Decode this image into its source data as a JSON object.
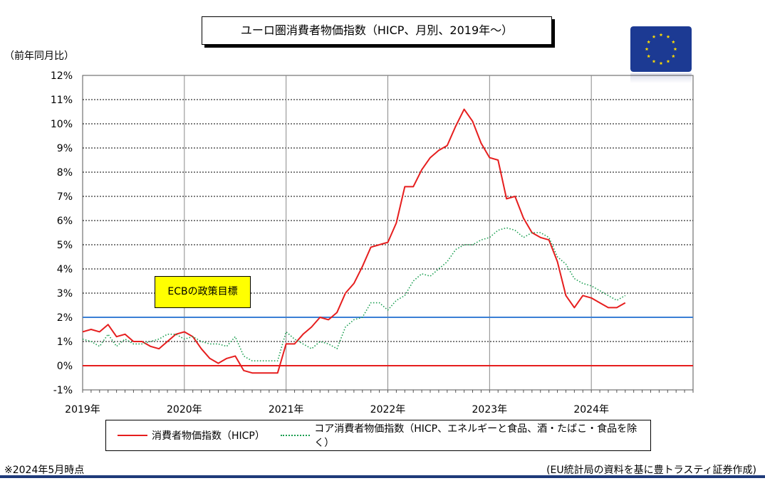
{
  "title": "ユーロ圏消費者物価指数（HICP、月別、2019年～）",
  "y_unit_label": "（前年同月比）",
  "ecb_label": "ECBの政策目標",
  "note_left": "※2024年5月時点",
  "note_right": "(EU統計局の資料を基に豊トラスティ証券作成)",
  "colors": {
    "hicp": "#e61e1e",
    "core": "#1a9e50",
    "target": "#3a7fd5",
    "zero": "#e61e1e",
    "flag_blue": "#1c3a93",
    "flag_star": "#ffdd00"
  },
  "icon": "eu-flag-icon",
  "chart_data": {
    "type": "line",
    "title": "ユーロ圏消費者物価指数（HICP、月別、2019年～）",
    "ylabel": "（前年同月比）",
    "xlabel": "",
    "ylim": [
      -1,
      12
    ],
    "yticks": [
      "-1%",
      "0%",
      "1%",
      "2%",
      "3%",
      "4%",
      "5%",
      "6%",
      "7%",
      "8%",
      "9%",
      "10%",
      "11%",
      "12%"
    ],
    "xticks": [
      "2019年",
      "2020年",
      "2021年",
      "2022年",
      "2023年",
      "2024年"
    ],
    "grid": true,
    "legend_position": "bottom",
    "reference_lines": [
      {
        "name": "ECBの政策目標",
        "value": 2
      },
      {
        "name": "",
        "value": 0
      }
    ],
    "series": [
      {
        "name": "消費者物価指数（HICP）",
        "style": "solid",
        "values": [
          1.4,
          1.5,
          1.4,
          1.7,
          1.2,
          1.3,
          1.0,
          1.0,
          0.8,
          0.7,
          1.0,
          1.3,
          1.4,
          1.2,
          0.7,
          0.3,
          0.1,
          0.3,
          0.4,
          -0.2,
          -0.3,
          -0.3,
          -0.3,
          -0.3,
          0.9,
          0.9,
          1.3,
          1.6,
          2.0,
          1.9,
          2.2,
          3.0,
          3.4,
          4.1,
          4.9,
          5.0,
          5.1,
          5.9,
          7.4,
          7.4,
          8.1,
          8.6,
          8.9,
          9.1,
          9.9,
          10.6,
          10.1,
          9.2,
          8.6,
          8.5,
          6.9,
          7.0,
          6.1,
          5.5,
          5.3,
          5.2,
          4.3,
          2.9,
          2.4,
          2.9,
          2.8,
          2.6,
          2.4,
          2.4,
          2.6
        ]
      },
      {
        "name": "コア消費者物価指数（HICP、エネルギーと食品、酒・たばこ・食品を除く）",
        "style": "dotted",
        "values": [
          1.1,
          1.0,
          0.8,
          1.3,
          0.8,
          1.1,
          0.9,
          0.9,
          1.0,
          1.1,
          1.3,
          1.3,
          1.1,
          1.2,
          1.0,
          0.9,
          0.9,
          0.8,
          1.2,
          0.4,
          0.2,
          0.2,
          0.2,
          0.2,
          1.4,
          1.1,
          0.9,
          0.7,
          1.0,
          0.9,
          0.7,
          1.6,
          1.9,
          2.0,
          2.6,
          2.6,
          2.3,
          2.7,
          2.9,
          3.5,
          3.8,
          3.7,
          4.0,
          4.3,
          4.8,
          5.0,
          5.0,
          5.2,
          5.3,
          5.6,
          5.7,
          5.6,
          5.3,
          5.5,
          5.5,
          5.3,
          4.5,
          4.2,
          3.6,
          3.4,
          3.3,
          3.1,
          2.9,
          2.7,
          2.9
        ]
      }
    ]
  }
}
